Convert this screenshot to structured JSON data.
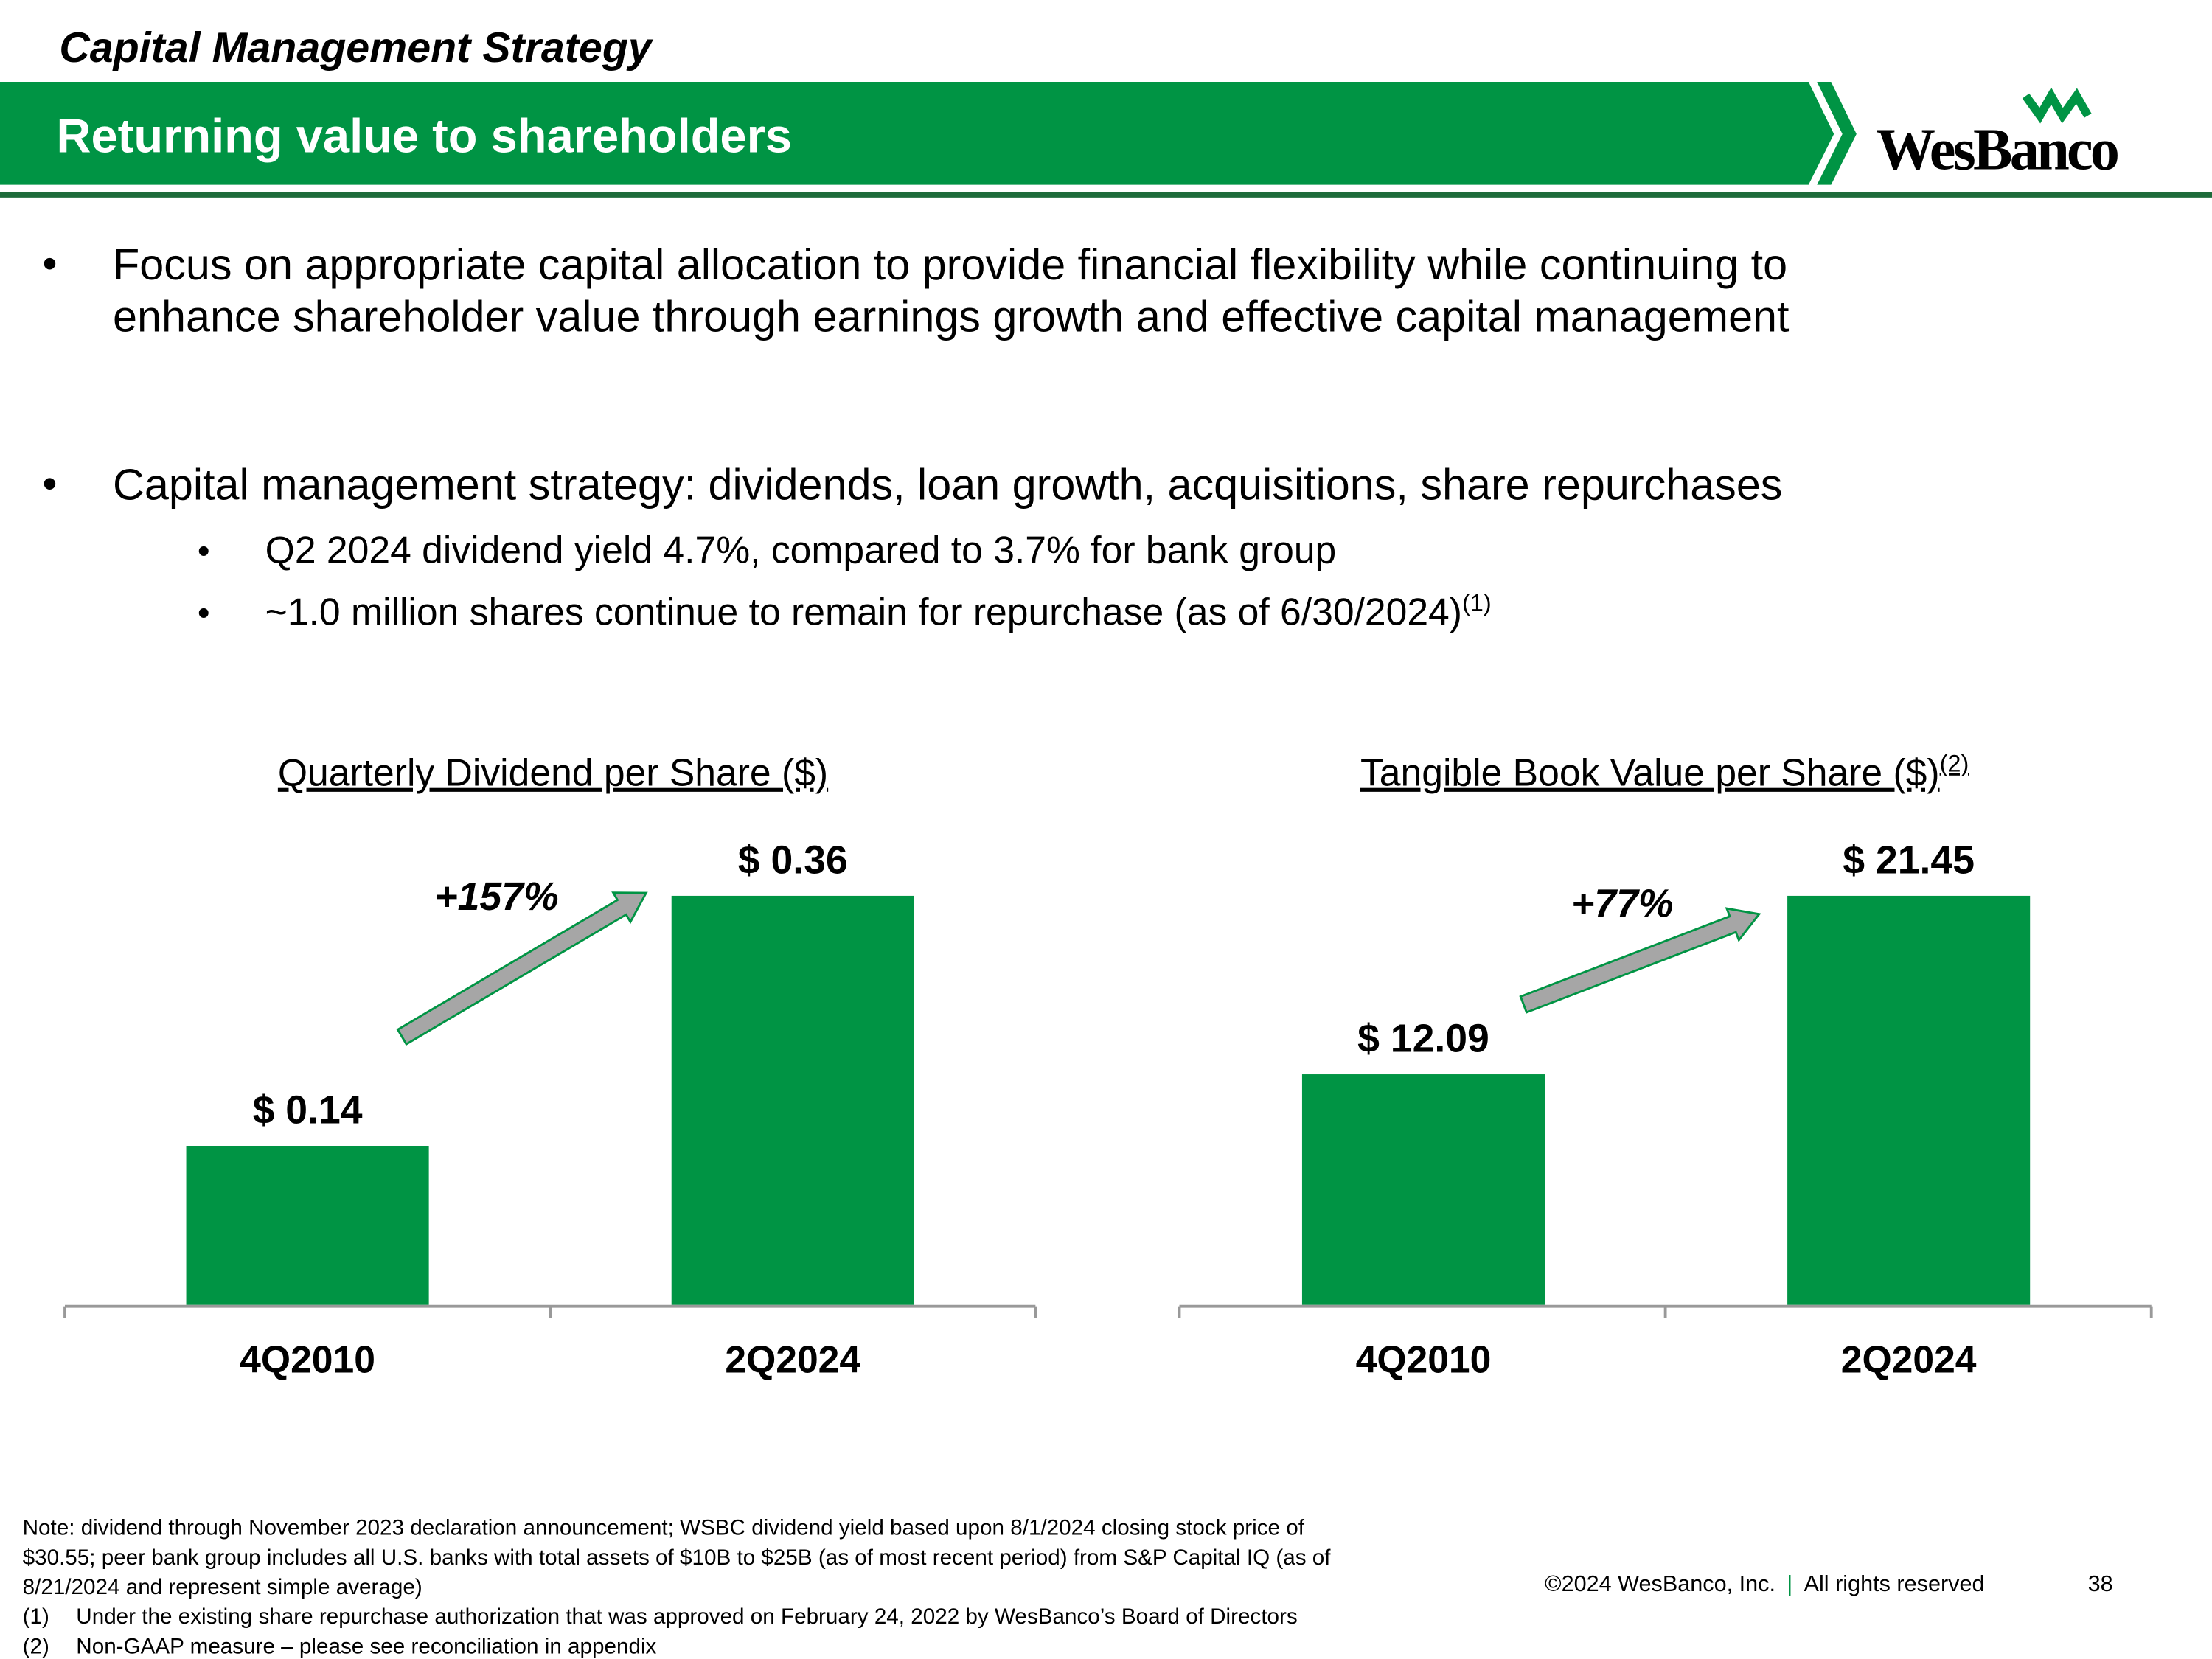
{
  "header": {
    "section": "Capital Management Strategy",
    "title": "Returning value to shareholders",
    "logo": "WesBanco"
  },
  "bullets": [
    {
      "lines": [
        "Focus on appropriate capital allocation to provide financial flexibility while continuing to",
        "enhance shareholder value through earnings growth and effective capital management"
      ]
    },
    {
      "lines": [
        "Capital management strategy:  dividends, loan growth, acquisitions, share repurchases"
      ],
      "sub": [
        {
          "text": "Q2 2024 dividend yield 4.7%, compared to 3.7% for bank group"
        },
        {
          "text": "~1.0 million shares continue to remain for repurchase (as of 6/30/2024)",
          "note": "(1)"
        }
      ]
    }
  ],
  "chart_data": [
    {
      "type": "bar",
      "title": "Quarterly Dividend per Share ($)",
      "categories": [
        "4Q2010",
        "2Q2024"
      ],
      "values": [
        0.14,
        0.36
      ],
      "value_labels": [
        "$ 0.14",
        "$ 0.36"
      ],
      "color": "#009444",
      "annotation": "+157%"
    },
    {
      "type": "bar",
      "title": "Tangible Book Value per Share ($)",
      "title_note": "(2)",
      "categories": [
        "4Q2010",
        "2Q2024"
      ],
      "values": [
        12.09,
        21.45
      ],
      "value_labels": [
        "$ 12.09",
        "$ 21.45"
      ],
      "color": "#009444",
      "annotation": "+77%"
    }
  ],
  "notes": {
    "lines": [
      "Note: dividend through November 2023 declaration announcement; WSBC dividend yield based upon 8/1/2024 closing stock price of",
      "$30.55; peer bank group includes all U.S. banks with total assets of $10B to $25B (as of most recent period) from S&P Capital IQ (as of",
      "8/21/2024 and represent simple average)"
    ],
    "footnotes": [
      {
        "marker": "(1)",
        "text": "Under the existing share repurchase authorization that was approved on February 24, 2022 by WesBanco’s Board of Directors"
      },
      {
        "marker": "(2)",
        "text": "Non-GAAP measure – please see reconciliation in appendix"
      }
    ]
  },
  "footer": {
    "copyright": "©2024 WesBanco, Inc.",
    "rights": "All rights reserved",
    "page": "38"
  }
}
